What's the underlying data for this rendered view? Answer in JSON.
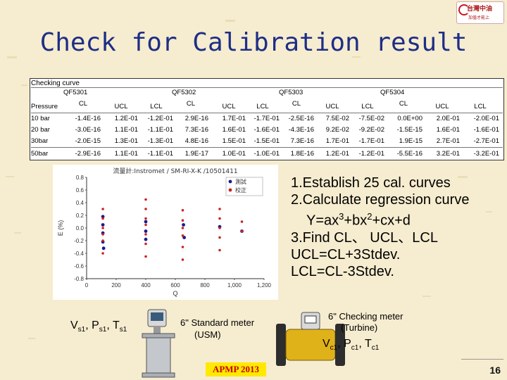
{
  "slide": {
    "title": "Check for Calibration result",
    "logo": {
      "text": "台灣中油",
      "subtext": "加值才能上"
    },
    "page_number": "16",
    "footer_badge": "APMP 2013"
  },
  "table": {
    "caption": "Checking curve",
    "groups": [
      "QF5301",
      "QF5302",
      "QF5303",
      "QF5304"
    ],
    "row_header": "Pressure",
    "columns": [
      "CL",
      "UCL",
      "LCL",
      "CL",
      "UCL",
      "LCL",
      "CL",
      "UCL",
      "LCL",
      "CL",
      "UCL",
      "LCL"
    ],
    "rows": [
      {
        "label": "10 bar",
        "cells": [
          "-1.4E-16",
          "1.2E-01",
          "-1.2E-01",
          "2.9E-16",
          "1.7E-01",
          "-1.7E-01",
          "-2.5E-16",
          "7.5E-02",
          "-7.5E-02",
          "0.0E+00",
          "2.0E-01",
          "-2.0E-01"
        ]
      },
      {
        "label": "20 bar",
        "cells": [
          "-3.0E-16",
          "1.1E-01",
          "-1.1E-01",
          "7.3E-16",
          "1.6E-01",
          "-1.6E-01",
          "-4.3E-16",
          "9.2E-02",
          "-9.2E-02",
          "-1.5E-15",
          "1.6E-01",
          "-1.6E-01"
        ]
      },
      {
        "label": "30bar",
        "cells": [
          "-2.0E-15",
          "1.3E-01",
          "-1.3E-01",
          "4.8E-16",
          "1.5E-01",
          "-1.5E-01",
          "7.3E-16",
          "1.7E-01",
          "-1.7E-01",
          "1.9E-15",
          "2.7E-01",
          "-2.7E-01"
        ]
      },
      {
        "label": "50bar",
        "cells": [
          "-2.9E-16",
          "1.1E-01",
          "-1.1E-01",
          "1.9E-17",
          "1.0E-01",
          "-1.0E-01",
          "1.8E-16",
          "1.2E-01",
          "-1.2E-01",
          "-5.5E-16",
          "3.2E-01",
          "-3.2E-01"
        ]
      }
    ]
  },
  "chart_data": {
    "type": "scatter",
    "title": "流量計:Instromet / SM-RI-X-K /10501411",
    "xlabel": "Q",
    "ylabel": "E (%)",
    "xlim": [
      0,
      1200
    ],
    "ylim": [
      -0.8,
      0.8
    ],
    "xticks": [
      "0",
      "200",
      "400",
      "600",
      "800",
      "1,000",
      "1,200"
    ],
    "yticks": [
      "0.8",
      "0.6",
      "0.4",
      "0.2",
      "0.0",
      "-0.2",
      "-0.4",
      "-0.6",
      "-0.8"
    ],
    "legend": [
      "測試",
      "校正"
    ],
    "series": [
      {
        "name": "測試",
        "color": "#1a1a8c",
        "points": [
          [
            110,
            0.05
          ],
          [
            110,
            -0.08
          ],
          [
            110,
            -0.22
          ],
          [
            110,
            0.18
          ],
          [
            115,
            -0.32
          ],
          [
            400,
            0.1
          ],
          [
            400,
            -0.05
          ],
          [
            400,
            -0.18
          ],
          [
            655,
            0.05
          ],
          [
            660,
            -0.15
          ],
          [
            900,
            0.02
          ],
          [
            1050,
            -0.05
          ]
        ]
      },
      {
        "name": "校正",
        "color": "#cc2222",
        "points": [
          [
            110,
            0.3
          ],
          [
            110,
            0.15
          ],
          [
            110,
            0.0
          ],
          [
            110,
            -0.1
          ],
          [
            110,
            -0.2
          ],
          [
            110,
            -0.4
          ],
          [
            400,
            0.45
          ],
          [
            400,
            0.3
          ],
          [
            400,
            0.15
          ],
          [
            400,
            0.05
          ],
          [
            400,
            -0.1
          ],
          [
            400,
            -0.25
          ],
          [
            400,
            -0.45
          ],
          [
            650,
            0.28
          ],
          [
            650,
            0.12
          ],
          [
            650,
            0.0
          ],
          [
            650,
            -0.12
          ],
          [
            650,
            -0.3
          ],
          [
            650,
            -0.5
          ],
          [
            900,
            0.3
          ],
          [
            900,
            0.15
          ],
          [
            900,
            0.0
          ],
          [
            900,
            -0.15
          ],
          [
            900,
            -0.35
          ],
          [
            1050,
            0.1
          ],
          [
            1050,
            -0.05
          ]
        ]
      }
    ]
  },
  "bullets": {
    "line1": "1.Establish 25 cal. curves",
    "line2": "2.Calculate regression curve",
    "line3_pre": "Y=ax",
    "line3_sup1": "3",
    "line3_mid": "+bx",
    "line3_sup2": "2",
    "line3_post": "+cx+d",
    "line4": "3.Find CL、 UCL、LCL",
    "line5": "UCL=CL+3Stdev.",
    "line6": "LCL=CL-3Stdev."
  },
  "bottom": {
    "std_vars": [
      "V",
      "s1",
      ", P",
      "s1",
      ", T",
      "s1"
    ],
    "std_label1": "6\" Standard meter",
    "std_label2": "(USM)",
    "chk_label1": "6\" Checking meter",
    "chk_label2": "(Turbine)",
    "chk_vars": [
      "V",
      "c1",
      ", P",
      "c1",
      ", T",
      "c1"
    ]
  }
}
